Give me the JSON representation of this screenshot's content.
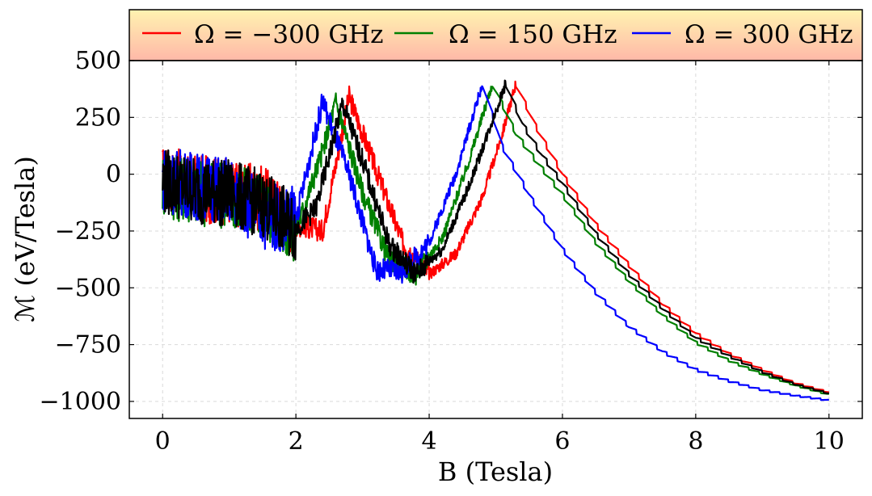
{
  "chart_data": {
    "type": "line",
    "xlabel": "B (Tesla)",
    "ylabel": "ℳ (eV/Tesla)",
    "xlim": [
      -0.5,
      10.5
    ],
    "ylim": [
      -1075,
      500
    ],
    "xticks": [
      0,
      2,
      4,
      6,
      8,
      10
    ],
    "xtick_labels": [
      "0",
      "2",
      "4",
      "6",
      "8",
      "10"
    ],
    "yticks": [
      500,
      250,
      0,
      -250,
      -500,
      -750,
      -1000
    ],
    "ytick_labels": [
      "500",
      "250",
      "0",
      "−250",
      "−500",
      "−750",
      "−1000"
    ],
    "grid": true,
    "legend_position": "top (above plot)",
    "series": [
      {
        "name": "Ω = −300 GHz",
        "color": "#ff0000",
        "peak_B": 5.3,
        "x": [
          0,
          0.5,
          1.0,
          1.5,
          2.0,
          2.4,
          2.8,
          3.2,
          3.6,
          4.0,
          4.4,
          4.8,
          5.1,
          5.3,
          5.6,
          6.0,
          6.5,
          7.0,
          7.5,
          8.0,
          8.5,
          9.0,
          9.5,
          10.0
        ],
        "values": [
          -20,
          -60,
          -80,
          -110,
          -220,
          -250,
          340,
          20,
          -300,
          -440,
          -350,
          -100,
          180,
          400,
          210,
          0,
          -220,
          -400,
          -570,
          -700,
          -790,
          -860,
          -920,
          -960
        ]
      },
      {
        "name": "Ω = 150 GHz",
        "color": "#008000",
        "peak_B": 4.95,
        "x": [
          0,
          0.5,
          1.0,
          1.5,
          2.0,
          2.4,
          2.6,
          3.0,
          3.4,
          3.8,
          4.2,
          4.6,
          4.95,
          5.3,
          5.6,
          6.0,
          6.5,
          7.0,
          7.5,
          8.0,
          8.5,
          9.0,
          9.5,
          10.0
        ],
        "values": [
          -40,
          -80,
          -90,
          -140,
          -250,
          100,
          320,
          -80,
          -380,
          -440,
          -280,
          60,
          400,
          180,
          60,
          -90,
          -300,
          -470,
          -620,
          -740,
          -820,
          -880,
          -930,
          -970
        ]
      },
      {
        "name": "",
        "color": "#000000",
        "peak_B": 5.15,
        "x": [
          0,
          0.5,
          1.0,
          1.5,
          2.0,
          2.3,
          2.7,
          3.0,
          3.4,
          3.8,
          4.2,
          4.6,
          5.15,
          5.4,
          5.7,
          6.0,
          6.5,
          7.0,
          7.5,
          8.0,
          8.5,
          9.0,
          9.5,
          10.0
        ],
        "values": [
          -30,
          -70,
          -85,
          -130,
          -240,
          -150,
          310,
          60,
          -310,
          -440,
          -330,
          -50,
          400,
          220,
          80,
          -40,
          -260,
          -440,
          -590,
          -720,
          -800,
          -870,
          -925,
          -965
        ]
      },
      {
        "name": "Ω = 300 GHz",
        "color": "#0000ff",
        "peak_B": 4.8,
        "x": [
          0,
          0.5,
          1.0,
          1.5,
          2.0,
          2.4,
          2.8,
          3.2,
          3.6,
          4.0,
          4.4,
          4.8,
          5.1,
          5.5,
          6.0,
          6.5,
          7.0,
          7.5,
          8.0,
          8.5,
          9.0,
          9.5,
          10.0
        ],
        "values": [
          -20,
          -50,
          -70,
          -180,
          -200,
          320,
          0,
          -420,
          -430,
          -300,
          0,
          400,
          120,
          -90,
          -330,
          -520,
          -670,
          -780,
          -860,
          -910,
          -950,
          -975,
          -995
        ]
      }
    ]
  }
}
